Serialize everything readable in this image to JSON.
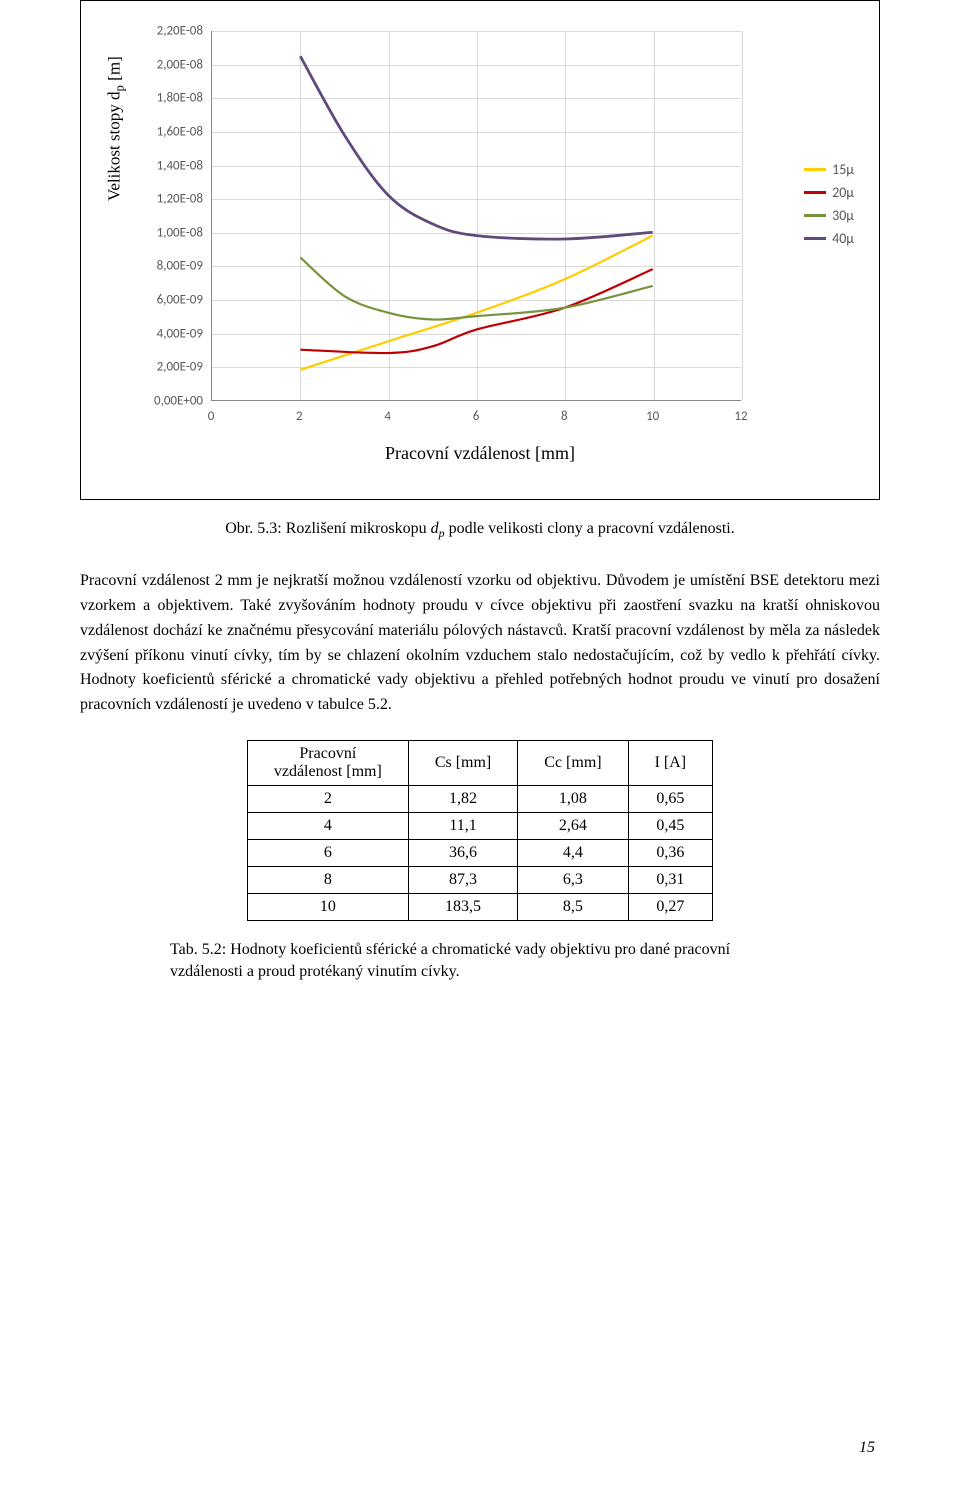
{
  "chart": {
    "type": "line",
    "y_axis_title_html": "Velikost stopy d<sub>p</sub> [m]",
    "x_axis_title": "Pracovní vzdálenost [mm]",
    "x_ticks": [
      0,
      2,
      4,
      6,
      8,
      10,
      12
    ],
    "y_tick_labels": [
      "0,00E+00",
      "2,00E-09",
      "4,00E-09",
      "6,00E-09",
      "8,00E-09",
      "1,00E-08",
      "1,20E-08",
      "1,40E-08",
      "1,60E-08",
      "1,80E-08",
      "2,00E-08",
      "2,20E-08"
    ],
    "ylim": [
      0,
      2.2e-08
    ],
    "xlim": [
      0,
      12
    ],
    "grid_color": "#d9d9d9",
    "axis_color": "#888888",
    "tick_font_color": "#595959",
    "series": [
      {
        "label": "15μ",
        "color": "#ffcc00",
        "width": 2.2,
        "points": [
          [
            2,
            1.8e-09
          ],
          [
            4,
            3.5e-09
          ],
          [
            6,
            5.2e-09
          ],
          [
            8,
            7.2e-09
          ],
          [
            10,
            9.8e-09
          ]
        ]
      },
      {
        "label": "20μ",
        "color": "#c00000",
        "width": 2.2,
        "points": [
          [
            2,
            3e-09
          ],
          [
            4,
            2.8e-09
          ],
          [
            5,
            3.2e-09
          ],
          [
            6,
            4.2e-09
          ],
          [
            8,
            5.5e-09
          ],
          [
            10,
            7.8e-09
          ]
        ]
      },
      {
        "label": "30μ",
        "color": "#77933c",
        "width": 2.2,
        "points": [
          [
            2,
            8.5e-09
          ],
          [
            3,
            6.2e-09
          ],
          [
            4,
            5.2e-09
          ],
          [
            5,
            4.8e-09
          ],
          [
            6,
            5e-09
          ],
          [
            8,
            5.5e-09
          ],
          [
            10,
            6.8e-09
          ]
        ]
      },
      {
        "label": "40μ",
        "color": "#604a7b",
        "width": 2.8,
        "points": [
          [
            2,
            2.05e-08
          ],
          [
            3,
            1.58e-08
          ],
          [
            4,
            1.22e-08
          ],
          [
            5,
            1.05e-08
          ],
          [
            6,
            9.8e-09
          ],
          [
            8,
            9.6e-09
          ],
          [
            10,
            1e-08
          ]
        ]
      }
    ]
  },
  "figure_caption_html": "Obr. 5.3: Rozlišení mikroskopu <i>d<sub>p</sub></i> podle velikosti clony a pracovní vzdálenosti.",
  "body_paragraph": "Pracovní vzdálenost 2 mm je nejkratší možnou vzdáleností vzorku od objektivu. Důvodem je umístění BSE detektoru mezi vzorkem a objektivem. Také zvyšováním hodnoty proudu v cívce objektivu při zaostření svazku na kratší ohniskovou vzdálenost dochází ke značnému přesycování materiálu pólových nástavců. Kratší pracovní vzdálenost by měla za následek zvýšení příkonu vinutí cívky, tím by se chlazení okolním vzduchem stalo nedostačujícím, což by vedlo k přehřátí cívky. Hodnoty koeficientů sférické a chromatické vady objektivu a přehled potřebných hodnot proudu ve vinutí pro dosažení pracovních vzdáleností je uvedeno v tabulce 5.2.",
  "table": {
    "headers": [
      "Pracovní\nvzdálenost [mm]",
      "Cs [mm]",
      "Cc [mm]",
      "I [A]"
    ],
    "rows": [
      [
        "2",
        "1,82",
        "1,08",
        "0,65"
      ],
      [
        "4",
        "11,1",
        "2,64",
        "0,45"
      ],
      [
        "6",
        "36,6",
        "4,4",
        "0,36"
      ],
      [
        "8",
        "87,3",
        "6,3",
        "0,31"
      ],
      [
        "10",
        "183,5",
        "8,5",
        "0,27"
      ]
    ]
  },
  "table_caption": "Tab. 5.2: Hodnoty koeficientů sférické a chromatické vady objektivu pro dané pracovní vzdálenosti a proud protékaný vinutím cívky.",
  "page_number": "15"
}
